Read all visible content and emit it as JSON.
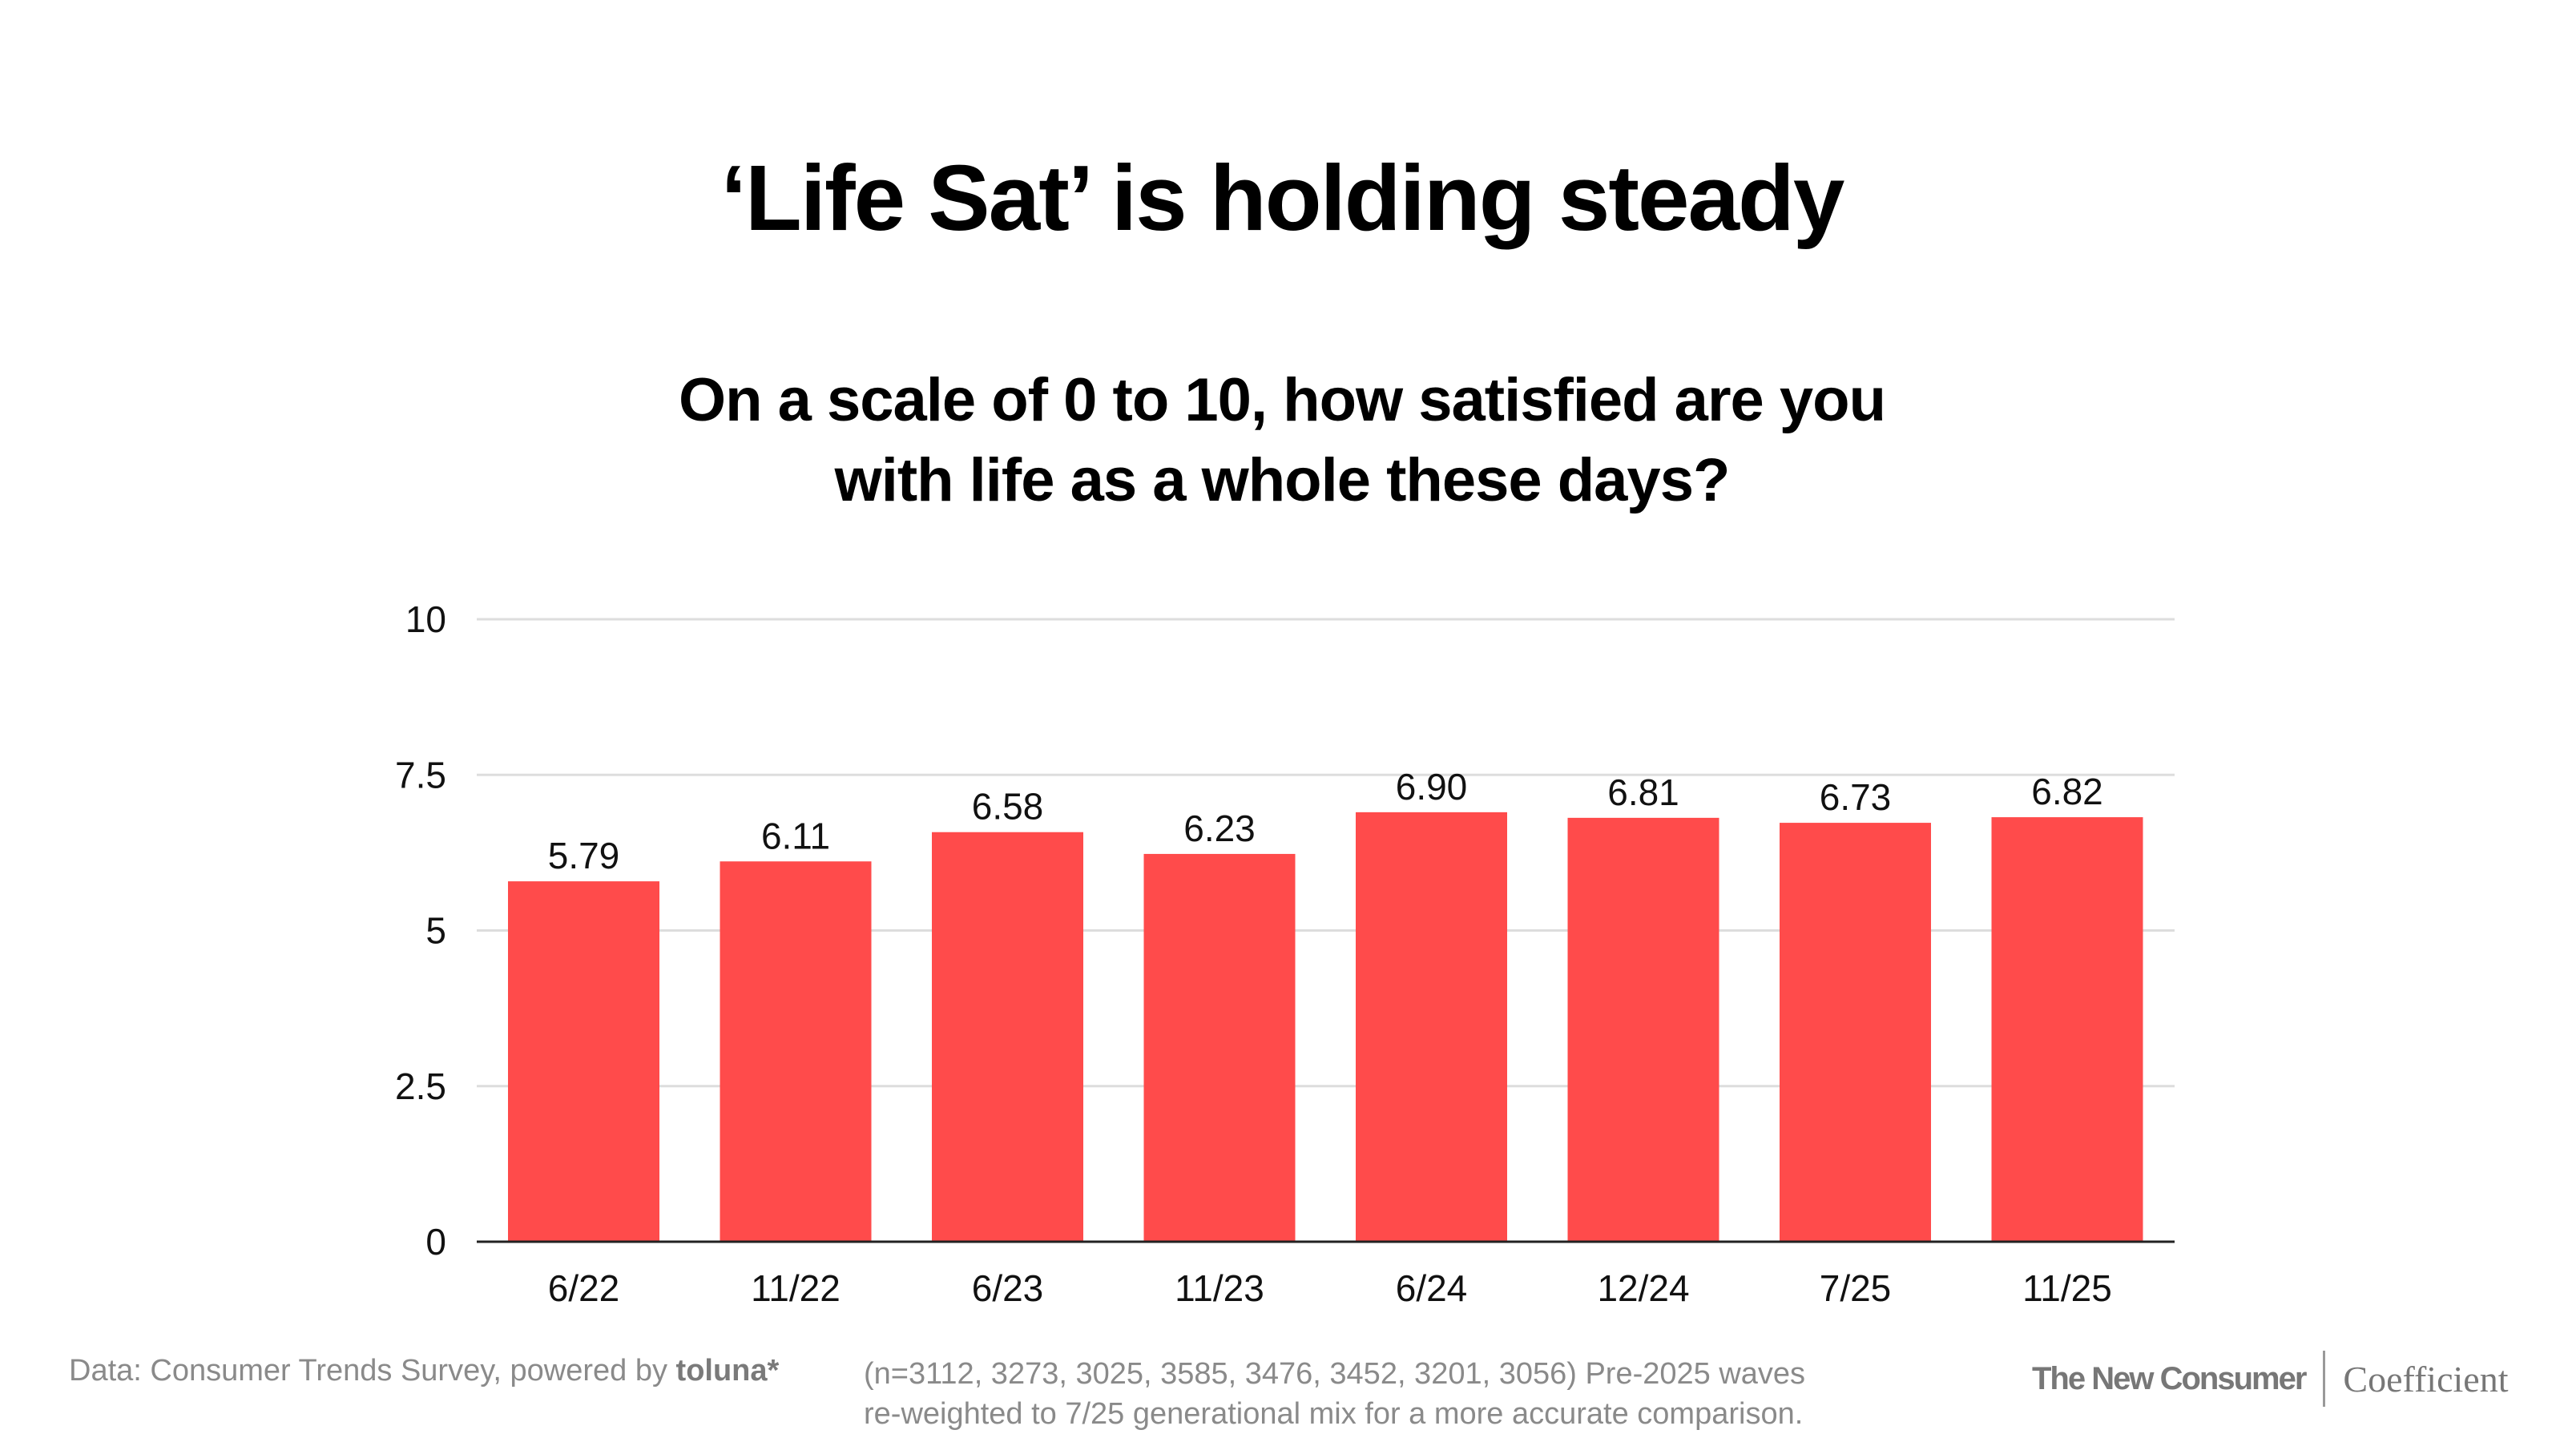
{
  "title": "‘Life Sat’ is holding steady",
  "subtitle": [
    "On a scale of 0 to 10, how satisfied are you",
    "with life as a whole these days?"
  ],
  "colors": {
    "bar": "#FF4B4B",
    "grid": "#DDDDDD",
    "axis": "#222222"
  },
  "chart_data": {
    "type": "bar",
    "title": "On a scale of 0 to 10, how satisfied are you with life as a whole these days?",
    "categories": [
      "6/22",
      "11/22",
      "6/23",
      "11/23",
      "6/24",
      "12/24",
      "7/25",
      "11/25"
    ],
    "values": [
      5.79,
      6.11,
      6.58,
      6.23,
      6.9,
      6.81,
      6.73,
      6.82
    ],
    "data_labels": [
      "5.79",
      "6.11",
      "6.58",
      "6.23",
      "6.90",
      "6.81",
      "6.73",
      "6.82"
    ],
    "yticks": [
      "0",
      "2.5",
      "5",
      "7.5",
      "10"
    ],
    "ytick_values": [
      0,
      2.5,
      5,
      7.5,
      10
    ],
    "ylim": [
      0,
      10
    ],
    "xlabel": "",
    "ylabel": "",
    "grid": true
  },
  "footer": {
    "source": "Data: Consumer Trends Survey, powered by",
    "source_logo": "toluna*",
    "note_line1": "(n=3112, 3273, 3025, 3585, 3476, 3452, 3201, 3056) Pre-2025 waves",
    "note_line2": "re-weighted to 7/25 generational mix for a more accurate comparison.",
    "brand1": "The New Consumer",
    "brand2": "Coefficient"
  }
}
